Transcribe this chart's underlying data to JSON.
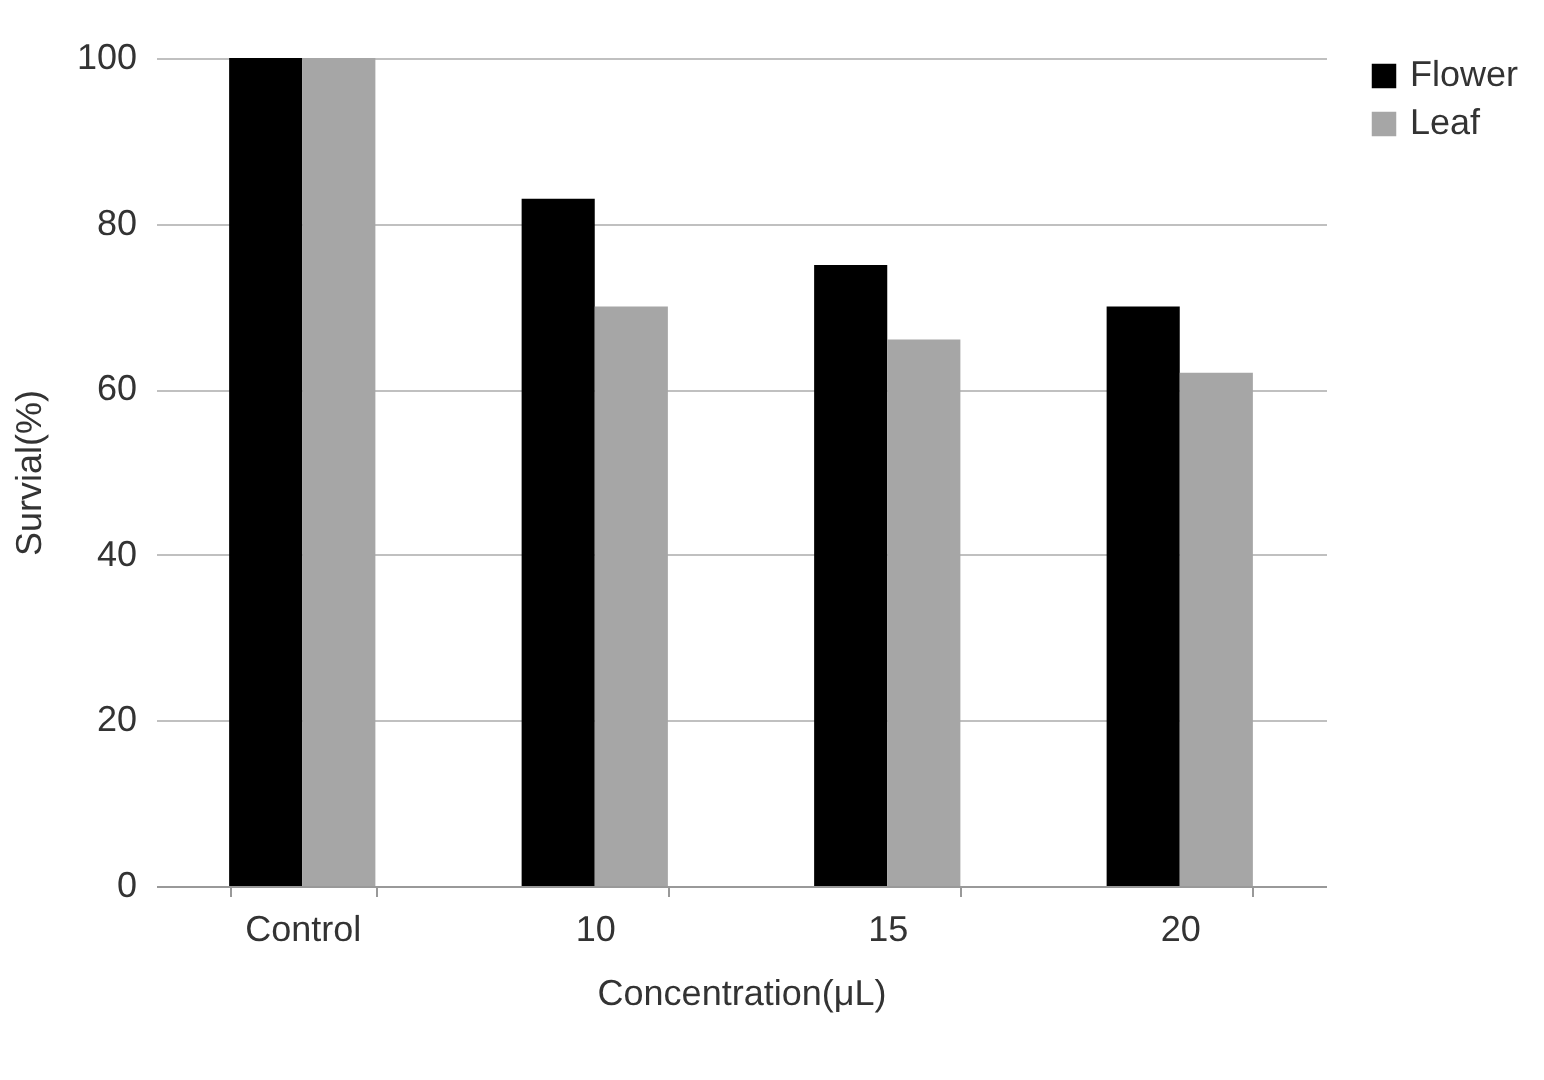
{
  "chart_data": {
    "type": "bar",
    "xlabel": "Concentration(μL)",
    "ylabel": "Survial(%)",
    "categories": [
      "Control",
      "10",
      "15",
      "20"
    ],
    "series": [
      {
        "name": "Flower",
        "color": "#000000",
        "values": [
          100,
          83,
          75,
          70
        ]
      },
      {
        "name": "Leaf",
        "color": "#a6a6a6",
        "values": [
          100,
          70,
          66,
          62
        ]
      }
    ],
    "ylim": [
      0,
      100
    ],
    "yticks": [
      0,
      20,
      40,
      60,
      80,
      100
    ],
    "grid": "y",
    "legend": "right"
  }
}
